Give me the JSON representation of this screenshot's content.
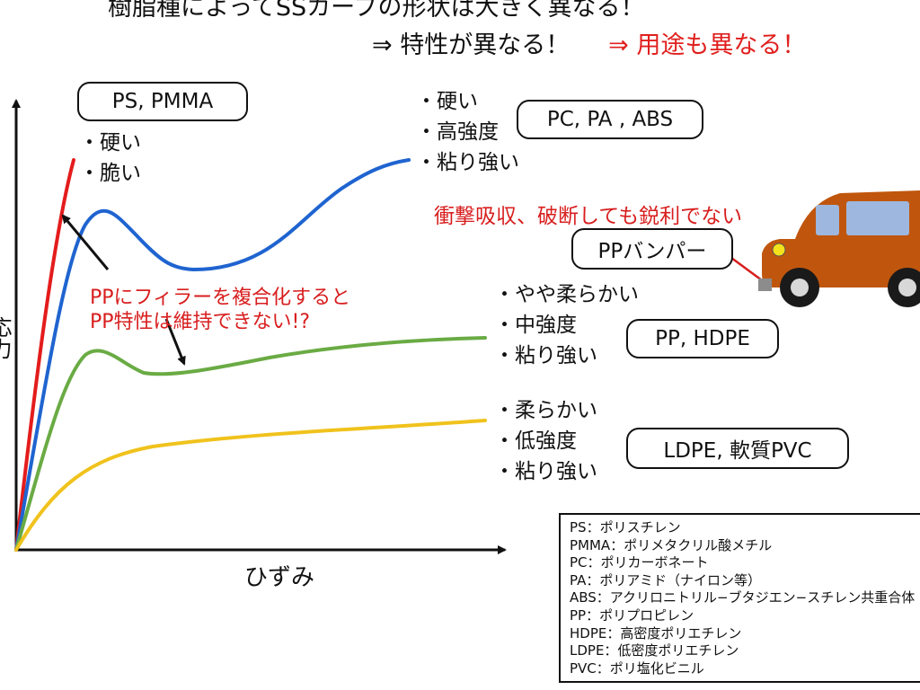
{
  "title": {
    "line1": "樹脂種によってSSカーブの形状は大きく異なる！",
    "line2_prefix": "⇒  特性が異なる！",
    "line2_suffix": "⇒  用途も異なる！"
  },
  "axes": {
    "y_label": "応力",
    "x_label": "ひずみ"
  },
  "groups": [
    {
      "id": "ps_pmma",
      "color": "#e41c1c",
      "label": "PS, PMMA",
      "properties": [
        "・硬い",
        "・脆い"
      ]
    },
    {
      "id": "pc_pa_abs",
      "color": "#1f64d0",
      "label": "PC, PA , ABS",
      "properties": [
        "・硬い",
        "・高強度",
        "・粘り強い"
      ]
    },
    {
      "id": "pp_hdpe",
      "color": "#6aab44",
      "label": "PP, HDPE",
      "properties": [
        "・やや柔らかい",
        "・中強度",
        "・粘り強い"
      ]
    },
    {
      "id": "ldpe_pvc",
      "color": "#f0c21c",
      "label": "LDPE, 軟質PVC",
      "properties": [
        "・柔らかい",
        "・低強度",
        "・粘り強い"
      ]
    }
  ],
  "notes": {
    "impact": "衝撃吸収、破断しても鋭利でない",
    "bumper": "PPバンパー",
    "filler_line1": "PPにフィラーを複合化すると",
    "filler_line2": "PP特性は維持できない!?"
  },
  "car": {
    "body_color": "#c0560d",
    "window_color": "#9db7de",
    "headlight_color": "#f4e21c"
  },
  "legend": [
    "PS：ポリスチレン",
    "PMMA：ポリメタクリル酸メチル",
    "PC：ポリカーボネート",
    "PA：ポリアミド（ナイロン等）",
    "ABS：アクリロニトリル−ブタジエン−スチレン共重合体",
    "PP：ポリプロピレン",
    "HDPE：高密度ポリエチレン",
    "LDPE：低密度ポリエチレン",
    "PVC：ポリ塩化ビニル"
  ]
}
